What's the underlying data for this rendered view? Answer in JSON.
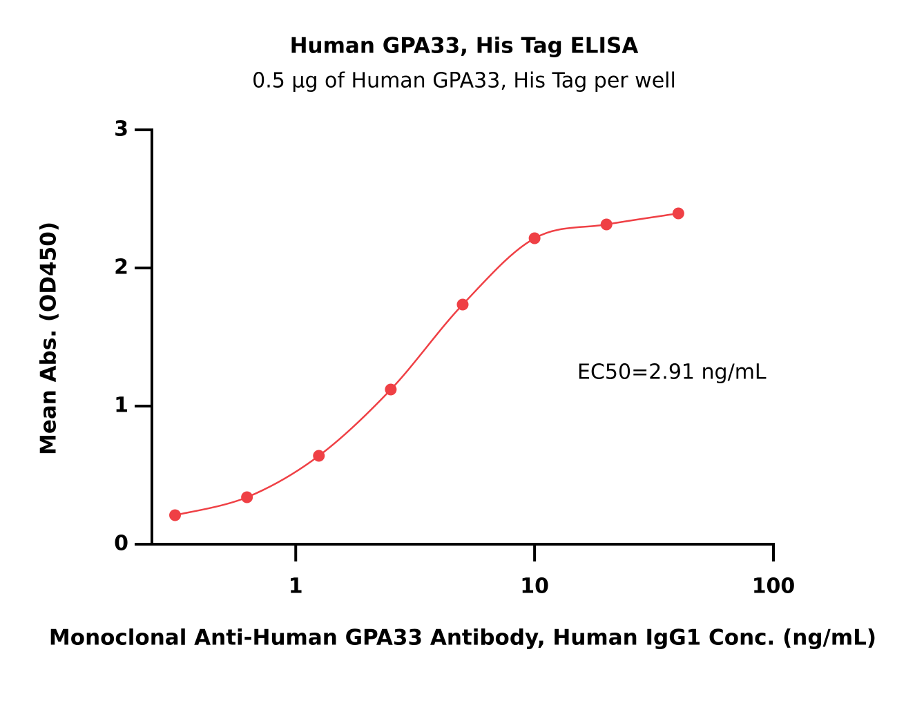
{
  "chart_data": {
    "type": "scatter",
    "title": "Human GPA33, His Tag ELISA",
    "subtitle": "0.5 µg of Human GPA33, His Tag per well",
    "x_label": "Monoclonal Anti-Human GPA33 Antibody, Human IgG1 Conc. (ng/mL)",
    "y_label": "Mean Abs. (OD450)",
    "annotation": "EC50=2.91 ng/mL",
    "x": [
      0.3125,
      0.625,
      1.25,
      2.5,
      5,
      10,
      20,
      40
    ],
    "series": [
      {
        "color": "#ef4045",
        "values": [
          0.21,
          0.34,
          0.64,
          1.12,
          1.735,
          2.215,
          2.315,
          2.395
        ]
      }
    ],
    "xscale": "log",
    "xlim": [
      0.25,
      100
    ],
    "xticks": [
      1,
      10,
      100
    ],
    "ylim": [
      0,
      3
    ],
    "yticks": [
      0,
      1,
      2,
      3
    ]
  }
}
